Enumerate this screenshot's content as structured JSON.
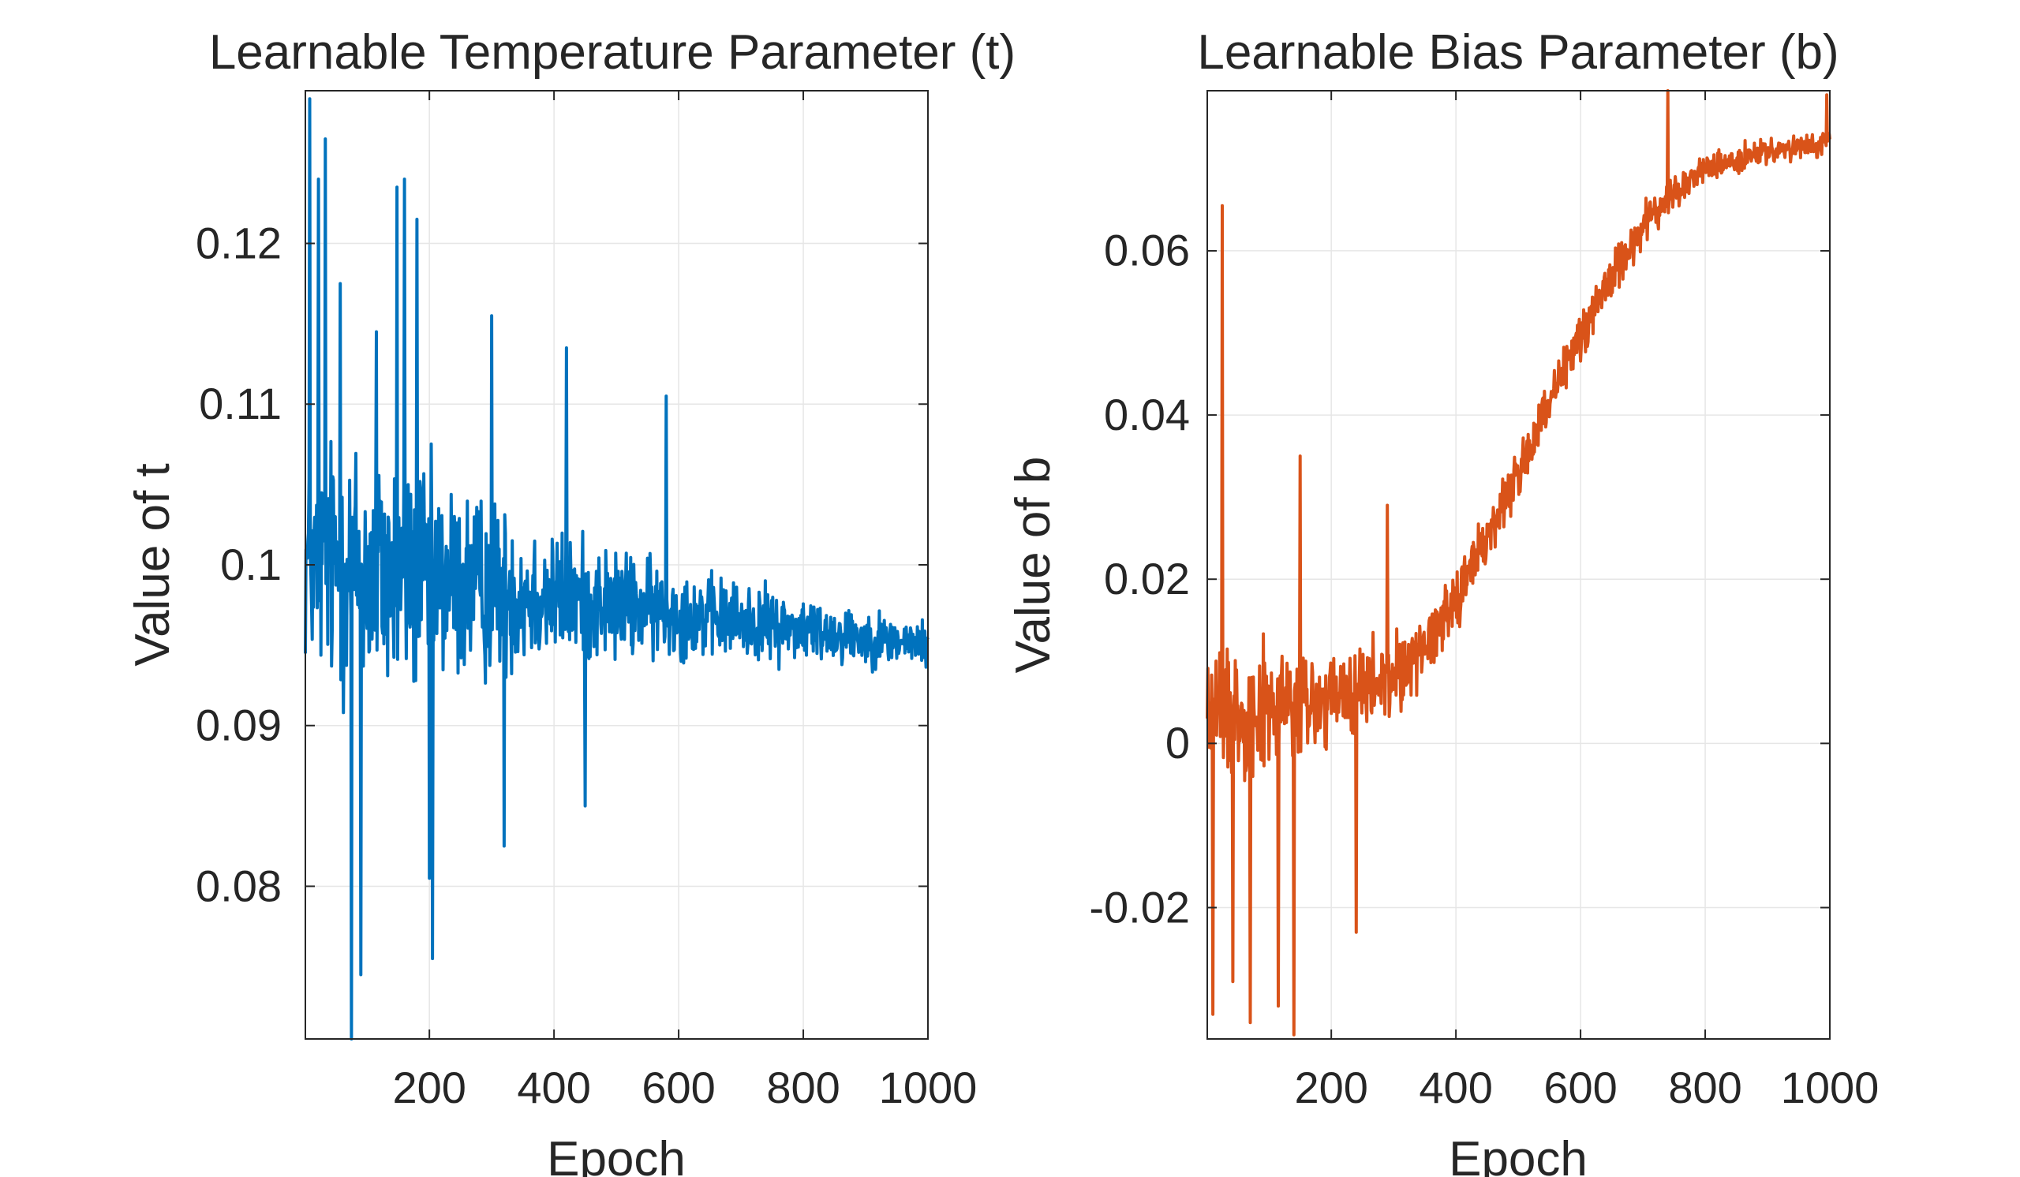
{
  "chart_data": [
    {
      "type": "line",
      "title": "Learnable Temperature Parameter (t)",
      "xlabel": "Epoch",
      "ylabel": "Value of t",
      "xlim": [
        1,
        1000
      ],
      "ylim": [
        0.0705,
        0.1295
      ],
      "xticks": [
        200,
        400,
        600,
        800,
        1000
      ],
      "xtick_labels": [
        "200",
        "400",
        "600",
        "800",
        "1000"
      ],
      "yticks": [
        0.08,
        0.09,
        0.1,
        0.11,
        0.12
      ],
      "ytick_labels": [
        "0.08",
        "0.09",
        "0.1",
        "0.11",
        "0.12"
      ],
      "grid": true,
      "series": [
        {
          "name": "t",
          "color": "#0072BD",
          "description": "Noisy oscillation around 0.1 with amplitude shrinking over epochs; ends near 0.095",
          "trend": {
            "epochs": [
              1,
              50,
              100,
              200,
              300,
              400,
              500,
              600,
              700,
              800,
              900,
              1000
            ],
            "mean": [
              0.1,
              0.1,
              0.0995,
              0.099,
              0.0985,
              0.098,
              0.0975,
              0.097,
              0.0965,
              0.096,
              0.0955,
              0.095
            ],
            "spread": [
              0.009,
              0.012,
              0.012,
              0.01,
              0.008,
              0.006,
              0.005,
              0.004,
              0.0035,
              0.003,
              0.0025,
              0.002
            ]
          },
          "spikes": [
            [
              8,
              0.129
            ],
            [
              22,
              0.124
            ],
            [
              33,
              0.1265
            ],
            [
              57,
              0.1175
            ],
            [
              75,
              0.0705
            ],
            [
              90,
              0.0745
            ],
            [
              115,
              0.1145
            ],
            [
              148,
              0.1235
            ],
            [
              160,
              0.124
            ],
            [
              180,
              0.1215
            ],
            [
              200,
              0.0805
            ],
            [
              205,
              0.0755
            ],
            [
              300,
              0.1155
            ],
            [
              320,
              0.0825
            ],
            [
              420,
              0.1135
            ],
            [
              450,
              0.085
            ],
            [
              580,
              0.1105
            ]
          ]
        }
      ]
    },
    {
      "type": "line",
      "title": "Learnable Bias Parameter (b)",
      "xlabel": "Epoch",
      "ylabel": "Value of b",
      "xlim": [
        1,
        1000
      ],
      "ylim": [
        -0.036,
        0.0795
      ],
      "xticks": [
        200,
        400,
        600,
        800,
        1000
      ],
      "xtick_labels": [
        "200",
        "400",
        "600",
        "800",
        "1000"
      ],
      "yticks": [
        -0.02,
        0,
        0.02,
        0.04,
        0.06
      ],
      "ytick_labels": [
        "-0.02",
        "0",
        "0.02",
        "0.04",
        "0.06"
      ],
      "grid": true,
      "series": [
        {
          "name": "b",
          "color": "#D95319",
          "description": "Noisy near 0 for the first ~300 epochs, then rises steadily to about 0.073 by epoch 1000",
          "trend": {
            "epochs": [
              1,
              100,
              200,
              300,
              350,
              400,
              450,
              500,
              550,
              600,
              650,
              700,
              750,
              800,
              900,
              1000
            ],
            "mean": [
              0.004,
              0.004,
              0.005,
              0.008,
              0.012,
              0.018,
              0.025,
              0.033,
              0.041,
              0.05,
              0.057,
              0.063,
              0.067,
              0.07,
              0.072,
              0.073
            ],
            "spread": [
              0.011,
              0.011,
              0.009,
              0.007,
              0.006,
              0.006,
              0.005,
              0.005,
              0.005,
              0.005,
              0.004,
              0.004,
              0.003,
              0.003,
              0.002,
              0.002
            ]
          },
          "spikes": [
            [
              25,
              0.0655
            ],
            [
              10,
              -0.033
            ],
            [
              42,
              -0.029
            ],
            [
              70,
              -0.034
            ],
            [
              115,
              -0.032
            ],
            [
              140,
              -0.0355
            ],
            [
              150,
              0.035
            ],
            [
              240,
              -0.023
            ],
            [
              290,
              0.029
            ],
            [
              740,
              0.08
            ],
            [
              995,
              0.079
            ]
          ]
        }
      ]
    }
  ]
}
